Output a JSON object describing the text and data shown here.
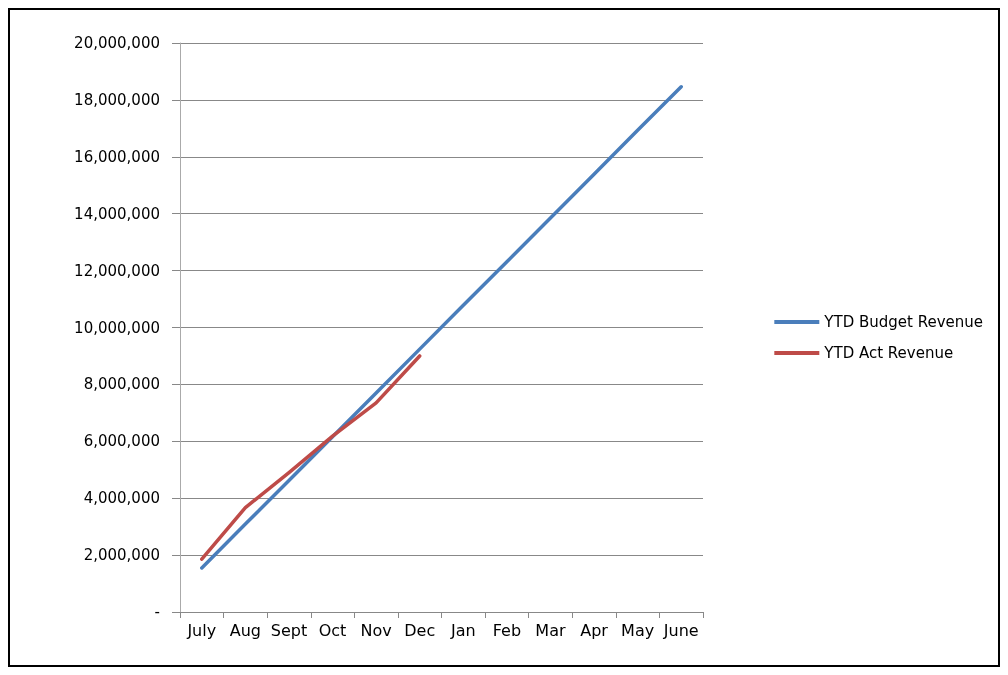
{
  "chart_data": {
    "type": "line",
    "categories": [
      "July",
      "Aug",
      "Sept",
      "Oct",
      "Nov",
      "Dec",
      "Jan",
      "Feb",
      "Mar",
      "Apr",
      "May",
      "June"
    ],
    "series": [
      {
        "name": "YTD Budget Revenue",
        "color": "#4a7ebb",
        "values": [
          1550000,
          3090000,
          4620000,
          6160000,
          7700000,
          9240000,
          10780000,
          12310000,
          13850000,
          15390000,
          16930000,
          18460000
        ]
      },
      {
        "name": "YTD Act Revenue",
        "color": "#be4b48",
        "values": [
          1860000,
          3670000,
          4900000,
          6180000,
          7350000,
          9000000,
          null,
          null,
          null,
          null,
          null,
          null
        ]
      }
    ],
    "ylim": [
      0,
      20000000
    ],
    "yticks": [
      {
        "value": 0,
        "label": "-"
      },
      {
        "value": 2000000,
        "label": "2,000,000"
      },
      {
        "value": 4000000,
        "label": "4,000,000"
      },
      {
        "value": 6000000,
        "label": "6,000,000"
      },
      {
        "value": 8000000,
        "label": "8,000,000"
      },
      {
        "value": 10000000,
        "label": "10,000,000"
      },
      {
        "value": 12000000,
        "label": "12,000,000"
      },
      {
        "value": 14000000,
        "label": "14,000,000"
      },
      {
        "value": 16000000,
        "label": "16,000,000"
      },
      {
        "value": 18000000,
        "label": "18,000,000"
      },
      {
        "value": 20000000,
        "label": "20,000,000"
      }
    ],
    "grid": "y",
    "legend": "right",
    "marker": "none",
    "line_style": "solid"
  }
}
